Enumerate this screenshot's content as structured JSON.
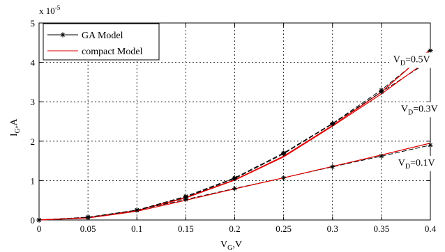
{
  "chart_data": {
    "type": "line",
    "xlabel_main": "V",
    "xlabel_sub": "G",
    "xlabel_tail": ",V",
    "ylabel_main": "I",
    "ylabel_sub": "G",
    "ylabel_tail": ",A",
    "exponent_base": "x 10",
    "exponent_power": "-5",
    "xlim": [
      0,
      0.4
    ],
    "ylim": [
      0,
      5
    ],
    "xticks": [
      "0",
      "0.05",
      "0.1",
      "0.15",
      "0.2",
      "0.25",
      "0.3",
      "0.35",
      "0.4"
    ],
    "yticks": [
      "0",
      "1",
      "2",
      "3",
      "4",
      "5"
    ],
    "grid": true,
    "legend_position": "top-left",
    "legend": [
      {
        "label": "GA Model",
        "color": "#000000",
        "marker": "asterisk"
      },
      {
        "label": "compact Model",
        "color": "#e00000",
        "marker": "none"
      }
    ],
    "x": [
      0,
      0.05,
      0.1,
      0.15,
      0.2,
      0.25,
      0.3,
      0.35,
      0.4
    ],
    "curves": [
      {
        "condition": "VD=0.5V",
        "ga": [
          0,
          0.07,
          0.25,
          0.6,
          1.07,
          1.7,
          2.45,
          3.3,
          4.3
        ],
        "compact": [
          0,
          0.06,
          0.24,
          0.57,
          1.02,
          1.62,
          2.4,
          3.25,
          4.33
        ]
      },
      {
        "condition": "VD=0.3V",
        "ga": [
          0,
          0.07,
          0.25,
          0.58,
          1.05,
          1.68,
          2.44,
          3.25,
          4.05
        ],
        "compact": [
          0,
          0.06,
          0.24,
          0.56,
          1.01,
          1.6,
          2.38,
          3.2,
          4.1
        ]
      },
      {
        "condition": "VD=0.1V",
        "ga": [
          0,
          0.06,
          0.25,
          0.52,
          0.8,
          1.07,
          1.35,
          1.62,
          1.9
        ],
        "compact": [
          0,
          0.05,
          0.22,
          0.5,
          0.79,
          1.07,
          1.36,
          1.65,
          1.95
        ]
      }
    ],
    "annotations": [
      {
        "main": "V",
        "sub": "D",
        "tail": "=0.5V",
        "x": 0.362,
        "y": 4.0
      },
      {
        "main": "V",
        "sub": "D",
        "tail": "=0.3V",
        "x": 0.37,
        "y": 2.75
      },
      {
        "main": "V",
        "sub": "D",
        "tail": "=0.1V",
        "x": 0.367,
        "y": 1.38
      }
    ]
  }
}
